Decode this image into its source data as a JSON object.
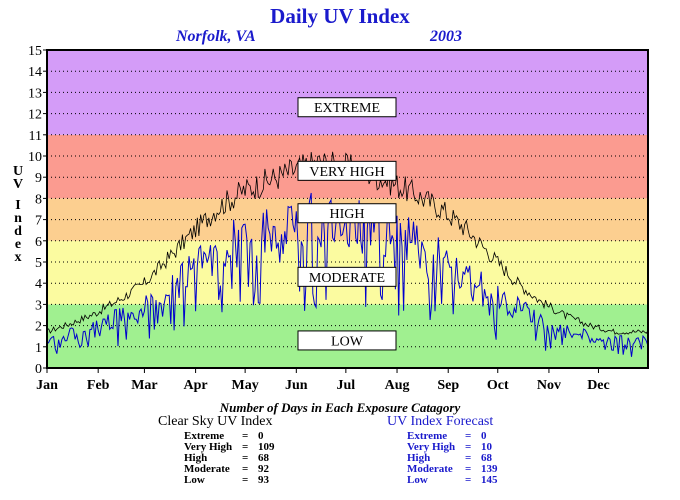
{
  "chart_data": {
    "type": "line",
    "title": "Daily UV Index",
    "location": "Norfolk, VA",
    "year": "2003",
    "ylabel": "UV Index",
    "ylim": [
      0,
      15
    ],
    "yticks": [
      0,
      1,
      2,
      3,
      4,
      5,
      6,
      7,
      8,
      9,
      10,
      11,
      12,
      13,
      14,
      15
    ],
    "xticks": [
      "Jan",
      "Feb",
      "Mar",
      "Apr",
      "May",
      "Jun",
      "Jul",
      "Aug",
      "Sep",
      "Oct",
      "Nov",
      "Dec"
    ],
    "grid": true,
    "bands": [
      {
        "label": "LOW",
        "from": 0,
        "to": 3,
        "color": "#a0f090",
        "label_at": 1.3
      },
      {
        "label": "MODERATE",
        "from": 3,
        "to": 6,
        "color": "#fbfba0",
        "label_at": 4.3
      },
      {
        "label": "HIGH",
        "from": 6,
        "to": 8,
        "color": "#fccf90",
        "label_at": 7.3
      },
      {
        "label": "VERY HIGH",
        "from": 8,
        "to": 11,
        "color": "#fb9b90",
        "label_at": 9.3
      },
      {
        "label": "EXTREME",
        "from": 11,
        "to": 15,
        "color": "#d49cf8",
        "label_at": 12.3
      }
    ],
    "series": [
      {
        "name": "Clear Sky UV Index",
        "color": "#000000",
        "x": [
          1,
          15,
          30,
          45,
          60,
          75,
          90,
          105,
          120,
          135,
          150,
          165,
          180,
          195,
          210,
          225,
          240,
          255,
          270,
          285,
          300,
          315,
          330,
          345,
          365
        ],
        "y": [
          1.8,
          2.2,
          2.7,
          3.4,
          4.2,
          5.5,
          6.8,
          8.0,
          8.8,
          9.3,
          9.8,
          10.2,
          10.0,
          9.7,
          9.2,
          8.6,
          7.9,
          6.9,
          5.6,
          4.3,
          3.3,
          2.6,
          2.1,
          1.8,
          1.8
        ]
      },
      {
        "name": "UV Index Forecast",
        "color": "#0000cc",
        "x": [
          1,
          15,
          30,
          45,
          60,
          75,
          90,
          105,
          120,
          135,
          150,
          165,
          180,
          195,
          210,
          225,
          240,
          255,
          270,
          285,
          300,
          315,
          330,
          345,
          365
        ],
        "y": [
          1.5,
          1.7,
          2.1,
          2.6,
          3.2,
          4.0,
          5.0,
          6.0,
          6.6,
          6.9,
          7.3,
          7.6,
          7.4,
          7.1,
          6.8,
          6.3,
          5.6,
          4.8,
          3.9,
          3.1,
          2.4,
          1.9,
          1.6,
          1.4,
          1.5
        ]
      }
    ]
  },
  "stats_caption": "Number of Days in Each Exposure Catagory",
  "clear_sky": {
    "title": "Clear Sky UV Index",
    "rows": [
      {
        "label": "Extreme",
        "value": "0"
      },
      {
        "label": "Very High",
        "value": "109"
      },
      {
        "label": "High",
        "value": "68"
      },
      {
        "label": "Moderate",
        "value": "92"
      },
      {
        "label": "Low",
        "value": "93"
      }
    ]
  },
  "forecast": {
    "title": "UV Index Forecast",
    "rows": [
      {
        "label": "Extreme",
        "value": "0"
      },
      {
        "label": "Very High",
        "value": "10"
      },
      {
        "label": "High",
        "value": "68"
      },
      {
        "label": "Moderate",
        "value": "139"
      },
      {
        "label": "Low",
        "value": "145"
      }
    ]
  }
}
